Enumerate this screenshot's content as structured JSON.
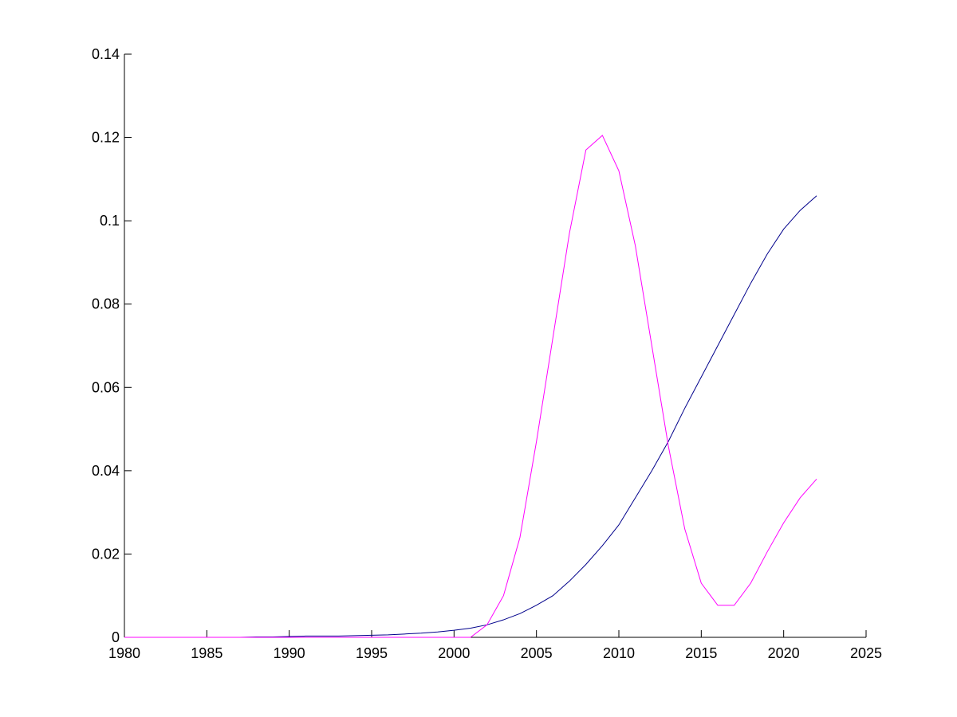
{
  "chart_data": {
    "type": "line",
    "x": [
      1980,
      1981,
      1982,
      1983,
      1984,
      1985,
      1986,
      1987,
      1988,
      1989,
      1990,
      1991,
      1992,
      1993,
      1994,
      1995,
      1996,
      1997,
      1998,
      1999,
      2000,
      2001,
      2002,
      2003,
      2004,
      2005,
      2006,
      2007,
      2008,
      2009,
      2010,
      2011,
      2012,
      2013,
      2014,
      2015,
      2016,
      2017,
      2018,
      2019,
      2020,
      2021,
      2022
    ],
    "series": [
      {
        "color": "#00008b",
        "values": [
          0,
          0,
          0,
          0,
          0,
          0,
          0,
          0,
          0.0001,
          0.0001,
          0.0002,
          0.0003,
          0.0003,
          0.0003,
          0.0004,
          0.0005,
          0.0006,
          0.0008,
          0.001,
          0.0013,
          0.0017,
          0.0022,
          0.003,
          0.0042,
          0.0057,
          0.0077,
          0.01,
          0.0135,
          0.0175,
          0.022,
          0.027,
          0.0335,
          0.04,
          0.047,
          0.055,
          0.0625,
          0.07,
          0.0775,
          0.085,
          0.092,
          0.098,
          0.1025,
          0.106
        ]
      },
      {
        "color": "#ff00ff",
        "values": [
          0,
          0,
          0,
          0,
          0,
          0,
          0,
          0,
          0,
          0,
          0,
          0,
          0,
          0,
          0,
          0,
          0,
          0,
          0,
          0,
          0,
          0,
          0.003,
          0.01,
          0.024,
          0.047,
          0.072,
          0.097,
          0.117,
          0.1205,
          0.112,
          0.094,
          0.07,
          0.046,
          0.026,
          0.013,
          0.0077,
          0.0077,
          0.013,
          0.0205,
          0.0275,
          0.0335,
          0.038
        ]
      }
    ],
    "xlim": [
      1980,
      2025
    ],
    "xticks": [
      1980,
      1985,
      1990,
      1995,
      2000,
      2005,
      2010,
      2015,
      2020,
      2025
    ],
    "ylim": [
      0,
      0.14
    ],
    "yticks": [
      0,
      0.02,
      0.04,
      0.06,
      0.08,
      0.1,
      0.12,
      0.14
    ]
  }
}
